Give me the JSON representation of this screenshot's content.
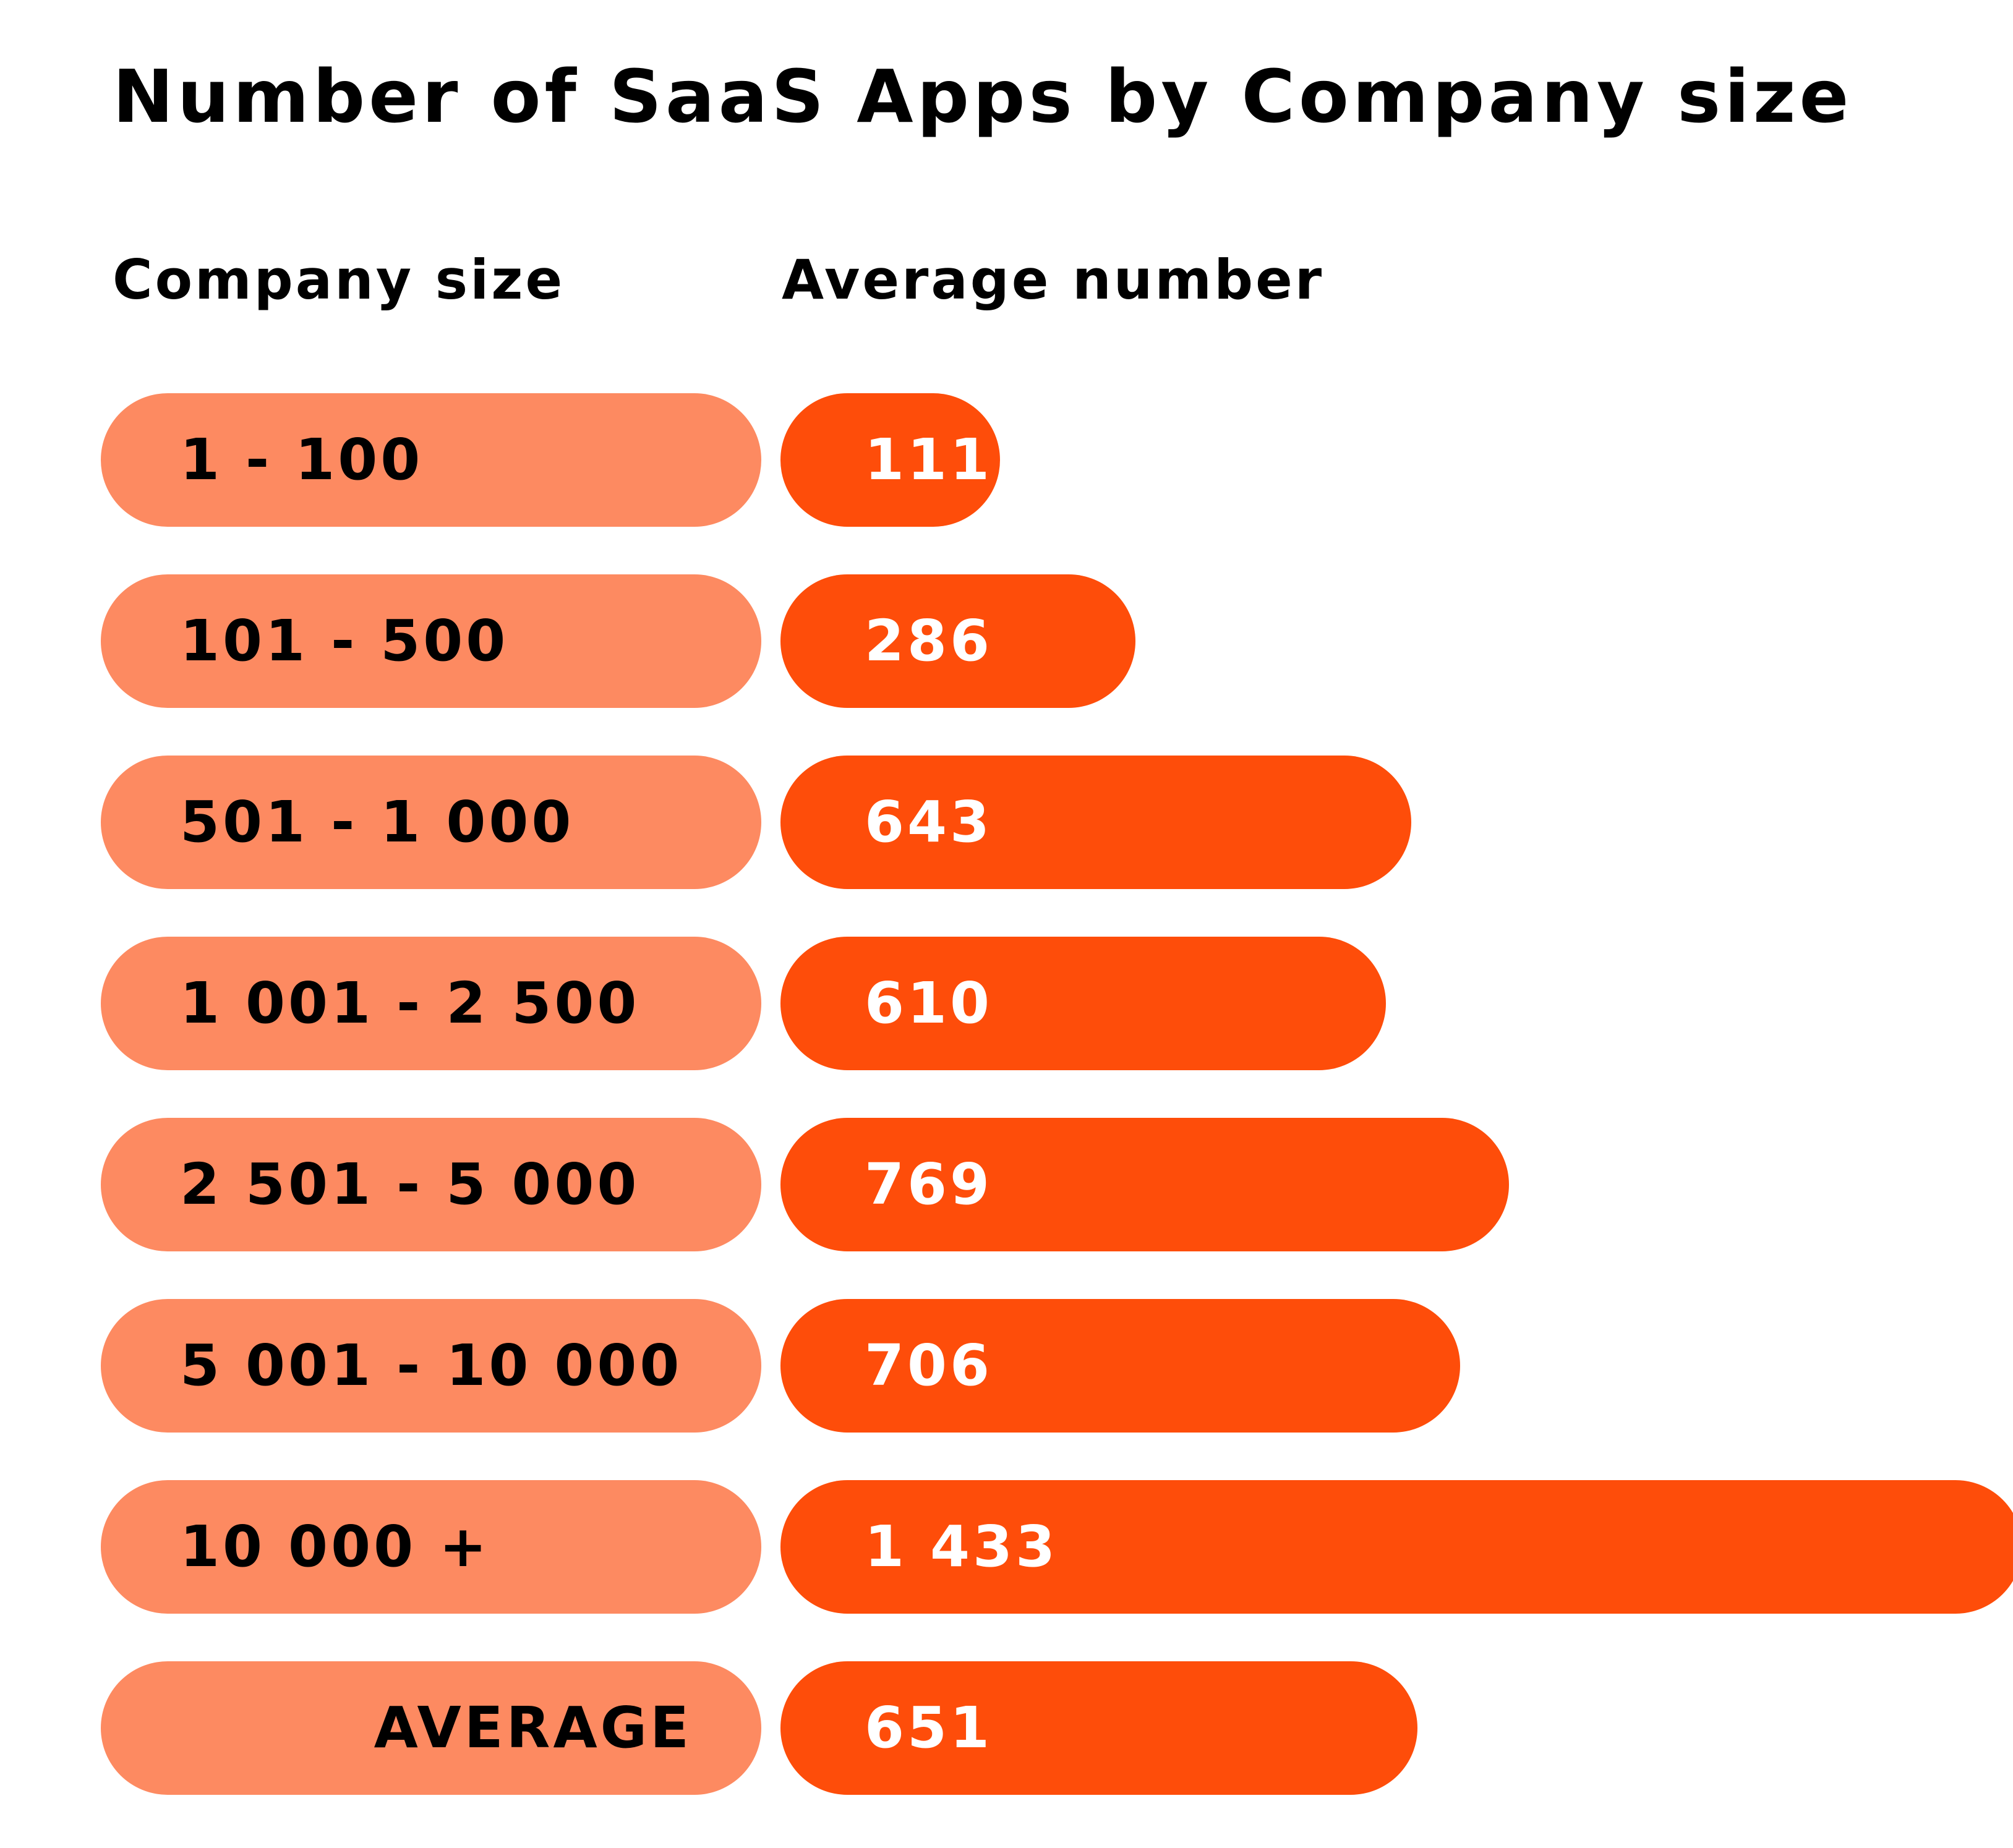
{
  "chart_data": {
    "type": "bar",
    "orientation": "horizontal",
    "title": "Number of SaaS Apps by Company size",
    "category_header": "Company size",
    "value_header": "Average number",
    "categories": [
      "1 - 100",
      "101 - 500",
      "501 - 1 000",
      "1 001 - 2 500",
      "2 501 - 5 000",
      "5 001 - 10 000",
      "10 000 +",
      "AVERAGE"
    ],
    "values": [
      111,
      286,
      643,
      610,
      769,
      706,
      1433,
      651
    ],
    "value_labels": [
      "111",
      "286",
      "643",
      "610",
      "769",
      "706",
      "1 433",
      "651"
    ],
    "summary_category": "AVERAGE",
    "grid": false,
    "legend": "none",
    "colors": {
      "category_pill": "#fd8a61",
      "bar": "#fe4d0a",
      "category_text": "#000000",
      "value_text": "#ffffff"
    }
  }
}
